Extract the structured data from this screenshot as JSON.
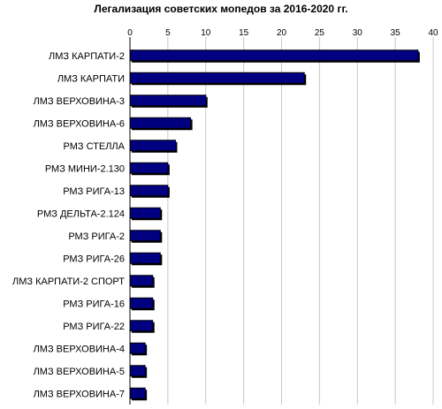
{
  "chart_data": {
    "type": "bar",
    "orientation": "horizontal",
    "title": "Легализация советских мопедов за 2016-2020 гг.",
    "xlabel": "",
    "ylabel": "",
    "xlim": [
      0,
      40
    ],
    "x_ticks": [
      "0",
      "5",
      "10",
      "15",
      "20",
      "25",
      "30",
      "35",
      "40"
    ],
    "grid": true,
    "legend": "none",
    "bar_color": "#000080",
    "categories": [
      "ЛМЗ КАРПАТИ-2",
      "ЛМЗ КАРПАТИ",
      "ЛМЗ ВЕРХОВИНА-3",
      "ЛМЗ ВЕРХОВИНА-6",
      "РМЗ СТЕЛЛА",
      "РМЗ МИНИ-2.130",
      "РМЗ РИГА-13",
      "РМЗ ДЕЛЬТА-2.124",
      "РМЗ РИГА-2",
      "РМЗ РИГА-26",
      "ЛМЗ КАРПАТИ-2 СПОРТ",
      "РМЗ РИГА-16",
      "РМЗ РИГА-22",
      "ЛМЗ ВЕРХОВИНА-4",
      "ЛМЗ ВЕРХОВИНА-5",
      "ЛМЗ ВЕРХОВИНА-7"
    ],
    "values": [
      38,
      23,
      10,
      8,
      6,
      5,
      5,
      4,
      4,
      4,
      3,
      3,
      3,
      2,
      2,
      2
    ]
  }
}
